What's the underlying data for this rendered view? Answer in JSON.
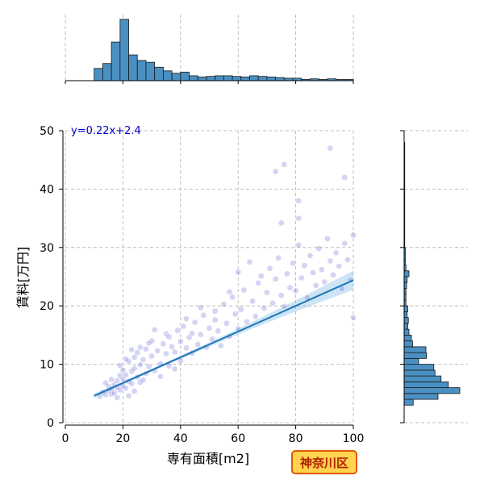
{
  "chart_data": [
    {
      "type": "scatter",
      "xlabel": "専有面積[m2]",
      "ylabel": "賃料[万円]",
      "xlim": [
        0,
        100
      ],
      "ylim": [
        0,
        50
      ],
      "x_ticks": [
        "0",
        "20",
        "40",
        "60",
        "80",
        "100"
      ],
      "y_ticks": [
        "0",
        "10",
        "20",
        "30",
        "40",
        "50"
      ],
      "grid": true,
      "annotation": "y=0.22x+2.4",
      "regression": {
        "slope": 0.22,
        "intercept": 2.4,
        "x_range": [
          10,
          100
        ]
      },
      "points": [
        [
          12,
          4.5
        ],
        [
          13,
          5.2
        ],
        [
          14,
          4.8
        ],
        [
          15,
          5.5
        ],
        [
          15,
          6.2
        ],
        [
          16,
          4.9
        ],
        [
          16,
          5.8
        ],
        [
          17,
          6.5
        ],
        [
          17,
          5.1
        ],
        [
          18,
          7.2
        ],
        [
          18,
          6.0
        ],
        [
          19,
          5.6
        ],
        [
          19,
          8.1
        ],
        [
          20,
          7.5
        ],
        [
          20,
          6.3
        ],
        [
          20,
          9.0
        ],
        [
          21,
          8.2
        ],
        [
          21,
          5.9
        ],
        [
          22,
          10.5
        ],
        [
          22,
          7.1
        ],
        [
          23,
          8.8
        ],
        [
          23,
          6.7
        ],
        [
          24,
          11.2
        ],
        [
          24,
          9.3
        ],
        [
          25,
          7.8
        ],
        [
          25,
          12.0
        ],
        [
          26,
          9.9
        ],
        [
          26,
          6.9
        ],
        [
          27,
          10.8
        ],
        [
          28,
          8.4
        ],
        [
          28,
          12.6
        ],
        [
          29,
          9.6
        ],
        [
          30,
          11.4
        ],
        [
          30,
          14.0
        ],
        [
          31,
          8.9
        ],
        [
          32,
          12.3
        ],
        [
          33,
          10.1
        ],
        [
          34,
          13.5
        ],
        [
          35,
          11.8
        ],
        [
          35,
          15.2
        ],
        [
          36,
          9.7
        ],
        [
          37,
          13.0
        ],
        [
          38,
          12.1
        ],
        [
          39,
          15.8
        ],
        [
          40,
          13.9
        ],
        [
          40,
          10.6
        ],
        [
          41,
          16.5
        ],
        [
          42,
          12.8
        ],
        [
          43,
          14.6
        ],
        [
          44,
          11.9
        ],
        [
          45,
          17.2
        ],
        [
          46,
          13.4
        ],
        [
          47,
          15.1
        ],
        [
          48,
          18.4
        ],
        [
          49,
          12.9
        ],
        [
          50,
          16.2
        ],
        [
          51,
          14.3
        ],
        [
          52,
          19.1
        ],
        [
          53,
          15.7
        ],
        [
          54,
          13.2
        ],
        [
          55,
          20.3
        ],
        [
          56,
          17.0
        ],
        [
          57,
          14.8
        ],
        [
          58,
          21.5
        ],
        [
          59,
          18.6
        ],
        [
          60,
          16.1
        ],
        [
          60,
          25.8
        ],
        [
          61,
          19.4
        ],
        [
          62,
          22.7
        ],
        [
          63,
          17.3
        ],
        [
          64,
          27.5
        ],
        [
          65,
          20.8
        ],
        [
          66,
          18.2
        ],
        [
          67,
          23.9
        ],
        [
          68,
          25.1
        ],
        [
          69,
          19.6
        ],
        [
          70,
          22.3
        ],
        [
          71,
          26.4
        ],
        [
          72,
          20.5
        ],
        [
          73,
          24.6
        ],
        [
          74,
          28.2
        ],
        [
          75,
          21.8
        ],
        [
          76,
          19.9
        ],
        [
          77,
          25.5
        ],
        [
          78,
          23.1
        ],
        [
          79,
          27.3
        ],
        [
          80,
          22.6
        ],
        [
          81,
          30.4
        ],
        [
          82,
          24.8
        ],
        [
          83,
          26.9
        ],
        [
          84,
          21.4
        ],
        [
          85,
          28.6
        ],
        [
          86,
          25.7
        ],
        [
          87,
          23.5
        ],
        [
          88,
          29.8
        ],
        [
          89,
          26.2
        ],
        [
          90,
          24.1
        ],
        [
          91,
          31.5
        ],
        [
          92,
          27.7
        ],
        [
          93,
          25.3
        ],
        [
          94,
          29.1
        ],
        [
          95,
          26.8
        ],
        [
          96,
          22.9
        ],
        [
          97,
          30.7
        ],
        [
          98,
          27.9
        ],
        [
          99,
          24.4
        ],
        [
          100,
          32.1
        ],
        [
          100,
          18.0
        ],
        [
          73,
          43.0
        ],
        [
          76,
          44.2
        ],
        [
          81,
          38.0
        ],
        [
          81,
          35.0
        ],
        [
          75,
          34.2
        ],
        [
          92,
          47.0
        ],
        [
          97,
          42.0
        ],
        [
          14,
          6.8
        ],
        [
          16,
          7.4
        ],
        [
          18,
          4.3
        ],
        [
          19,
          9.8
        ],
        [
          21,
          10.9
        ],
        [
          22,
          4.6
        ],
        [
          23,
          12.5
        ],
        [
          24,
          5.4
        ],
        [
          26,
          12.9
        ],
        [
          27,
          7.3
        ],
        [
          29,
          13.6
        ],
        [
          31,
          15.9
        ],
        [
          33,
          7.9
        ],
        [
          36,
          14.7
        ],
        [
          38,
          9.2
        ],
        [
          42,
          17.8
        ],
        [
          44,
          15.3
        ],
        [
          47,
          19.7
        ],
        [
          52,
          17.6
        ],
        [
          57,
          22.4
        ]
      ]
    },
    {
      "type": "histogram",
      "orientation": "vertical",
      "description_scope": "marginal distribution of 専有面積",
      "bins": [
        [
          10,
          13,
          0.2
        ],
        [
          13,
          16,
          0.28
        ],
        [
          16,
          19,
          0.63
        ],
        [
          19,
          22,
          1.0
        ],
        [
          22,
          25,
          0.42
        ],
        [
          25,
          28,
          0.33
        ],
        [
          28,
          31,
          0.3
        ],
        [
          31,
          34,
          0.22
        ],
        [
          34,
          37,
          0.16
        ],
        [
          37,
          40,
          0.12
        ],
        [
          40,
          43,
          0.14
        ],
        [
          43,
          46,
          0.08
        ],
        [
          46,
          49,
          0.06
        ],
        [
          49,
          52,
          0.07
        ],
        [
          52,
          55,
          0.08
        ],
        [
          55,
          58,
          0.08
        ],
        [
          58,
          61,
          0.07
        ],
        [
          61,
          64,
          0.06
        ],
        [
          64,
          67,
          0.08
        ],
        [
          67,
          70,
          0.07
        ],
        [
          70,
          73,
          0.06
        ],
        [
          73,
          76,
          0.05
        ],
        [
          76,
          79,
          0.04
        ],
        [
          79,
          82,
          0.04
        ],
        [
          82,
          85,
          0.02
        ],
        [
          85,
          88,
          0.03
        ],
        [
          88,
          91,
          0.02
        ],
        [
          91,
          94,
          0.03
        ],
        [
          94,
          97,
          0.02
        ],
        [
          97,
          100,
          0.02
        ]
      ]
    },
    {
      "type": "histogram",
      "orientation": "horizontal",
      "description_scope": "marginal distribution of 賃料",
      "bins": [
        [
          3,
          4,
          0.15
        ],
        [
          4,
          5,
          0.56
        ],
        [
          5,
          6,
          0.92
        ],
        [
          6,
          7,
          0.73
        ],
        [
          7,
          8,
          0.61
        ],
        [
          8,
          9,
          0.51
        ],
        [
          9,
          10,
          0.49
        ],
        [
          10,
          11,
          0.24
        ],
        [
          11,
          12,
          0.37
        ],
        [
          12,
          13,
          0.36
        ],
        [
          13,
          14,
          0.14
        ],
        [
          14,
          15,
          0.12
        ],
        [
          15,
          16,
          0.08
        ],
        [
          16,
          17,
          0.06
        ],
        [
          17,
          18,
          0.07
        ],
        [
          18,
          19,
          0.05
        ],
        [
          19,
          20,
          0.06
        ],
        [
          20,
          21,
          0.03
        ],
        [
          21,
          22,
          0.03
        ],
        [
          22,
          23,
          0.03
        ],
        [
          23,
          24,
          0.04
        ],
        [
          24,
          25,
          0.05
        ],
        [
          25,
          26,
          0.08
        ],
        [
          26,
          27,
          0.03
        ],
        [
          27,
          28,
          0.02
        ],
        [
          28,
          29,
          0.02
        ],
        [
          29,
          30,
          0.02
        ],
        [
          30,
          32,
          0.01
        ],
        [
          32,
          35,
          0.01
        ],
        [
          35,
          40,
          0.01
        ],
        [
          40,
          45,
          0.01
        ],
        [
          45,
          48,
          0.01
        ]
      ]
    }
  ],
  "badge": {
    "label": "神奈川区",
    "fill": "#ffd34d",
    "border": "#e05a00",
    "text_color": "#b22000"
  },
  "colors": {
    "points": "#3a3acf",
    "regression": "#1f77b4",
    "band": "#8fc3e8",
    "bars": "#4a90c2"
  }
}
